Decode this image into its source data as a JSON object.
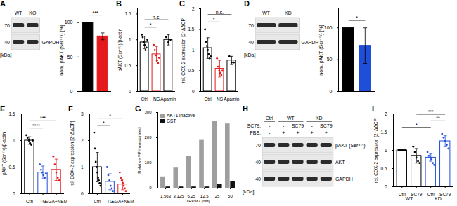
{
  "chart_data": [
    {
      "type": "blot",
      "panel": "A",
      "lanes": [
        "WT",
        "KO"
      ],
      "rows": [
        {
          "markers": [
            70
          ]
        },
        {
          "label": "GAPDH",
          "markers": [
            40
          ]
        }
      ],
      "unit": "[kDa]"
    },
    {
      "type": "bar",
      "categories": [
        null,
        null
      ],
      "values": [
        100,
        80
      ],
      "errors": [
        0,
        5
      ],
      "colors": [
        "#000000",
        "#e41a1c"
      ],
      "ylabel": "nom. pAKT (Ser⁴⁷³) [%]",
      "ylim": [
        0,
        120
      ],
      "yticks": [
        0,
        50,
        100
      ],
      "significance": [
        {
          "between": [
            0,
            1
          ],
          "label": "***"
        }
      ]
    },
    {
      "type": "bar",
      "panel": "B",
      "categories": [
        "Ctrl",
        "NS",
        "Apamin"
      ],
      "values": [
        0.95,
        0.72,
        1.0
      ],
      "errors": [
        0.12,
        0.15,
        0.1
      ],
      "colors": [
        "#000000",
        "#e41a1c",
        "#000000"
      ],
      "points": [
        [
          1.1,
          1.05,
          0.95,
          0.9,
          0.8,
          0.85,
          1.0
        ],
        [
          0.9,
          0.8,
          0.7,
          0.6,
          0.55,
          0.65
        ],
        [
          1.05,
          0.95,
          1.0
        ]
      ],
      "ylabel": "pAKT (Ser⁴⁷³)/β-actin",
      "ylim": [
        0,
        1.6
      ],
      "yticks": [
        0,
        0.5,
        1,
        1.5
      ],
      "significance": [
        {
          "between": [
            0,
            1
          ],
          "label": "*"
        },
        {
          "between": [
            0,
            2
          ],
          "label": "n.s."
        }
      ]
    },
    {
      "type": "bar",
      "panel": "C",
      "categories": [
        "Ctrl",
        "NS",
        "Apamin"
      ],
      "values": [
        1.05,
        0.55,
        0.75
      ],
      "errors": [
        0.25,
        0.2,
        0.1
      ],
      "colors": [
        "#000000",
        "#e41a1c",
        "#000000"
      ],
      "points": [
        [
          1.5,
          1.2,
          1.1,
          1.0,
          0.9,
          0.8,
          0.85
        ],
        [
          0.8,
          0.6,
          0.5,
          0.45,
          0.4,
          0.5
        ],
        [
          0.85,
          0.7,
          0.7
        ]
      ],
      "ylabel": "rel. COX-2 expression [2⁻ΔΔCP]",
      "ylim": [
        0,
        2
      ],
      "yticks": [
        0,
        0.5,
        1,
        1.5,
        2
      ],
      "significance": [
        {
          "between": [
            0,
            1
          ],
          "label": "*"
        },
        {
          "between": [
            0,
            2
          ],
          "label": "n.s."
        }
      ]
    },
    {
      "type": "blot",
      "panel": "D",
      "lanes": [
        "WT",
        "KD"
      ],
      "rows": [
        {
          "markers": [
            70
          ]
        },
        {
          "label": "GAPDH",
          "markers": [
            40
          ]
        }
      ],
      "unit": "[kDa]"
    },
    {
      "type": "bar",
      "categories": [
        null,
        null
      ],
      "values": [
        100,
        72
      ],
      "errors": [
        0,
        28
      ],
      "colors": [
        "#000000",
        "#1f4fd8"
      ],
      "ylabel": "nom. pAKT (Ser⁴⁷³) [%]",
      "ylim": [
        0,
        130
      ],
      "yticks": [
        0,
        50,
        100
      ],
      "significance": [
        {
          "between": [
            0,
            1
          ],
          "label": "*"
        }
      ]
    },
    {
      "type": "bar",
      "panel": "E",
      "categories": [
        "Ctrl",
        "TG",
        "EGA+NEM"
      ],
      "values": [
        1.0,
        0.4,
        0.45
      ],
      "errors": [
        0.07,
        0.12,
        0.2
      ],
      "colors": [
        "#000000",
        "#1f4fd8",
        "#e41a1c"
      ],
      "points": [
        [
          1.1,
          1.05,
          1.0,
          0.95,
          0.92,
          1.0
        ],
        [
          0.55,
          0.45,
          0.4,
          0.35,
          0.3,
          0.38
        ],
        [
          0.7,
          0.55,
          0.4,
          0.3,
          0.25
        ]
      ],
      "ylabel": "pAKT (Ser⁴⁷³)/β-actin",
      "ylim": [
        0,
        1.5
      ],
      "yticks": [
        0,
        0.5,
        1,
        1.5
      ],
      "significance": [
        {
          "between": [
            0,
            1
          ],
          "label": "****"
        },
        {
          "between": [
            0,
            2
          ],
          "label": "***"
        }
      ]
    },
    {
      "type": "bar",
      "panel": "F",
      "categories": [
        "Ctrl",
        "TG",
        "EGA+NEM"
      ],
      "values": [
        1.0,
        0.45,
        0.35
      ],
      "errors": [
        0.55,
        0.3,
        0.2
      ],
      "colors": [
        "#000000",
        "#1f4fd8",
        "#e41a1c"
      ],
      "points": [
        [
          2.3,
          1.7,
          1.2,
          1.0,
          0.8,
          0.6,
          0.5,
          0.4,
          0.3
        ],
        [
          1.0,
          0.7,
          0.5,
          0.3,
          0.2,
          0.1
        ],
        [
          0.8,
          0.6,
          0.5,
          0.4,
          0.3,
          0.2,
          0.1
        ]
      ],
      "ylabel": "rel. COX-2 expression [2⁻ΔΔCP]",
      "ylim": [
        0,
        3
      ],
      "yticks": [
        0,
        1,
        2,
        3
      ],
      "significance": [
        {
          "between": [
            0,
            1
          ],
          "label": "*"
        },
        {
          "between": [
            0,
            2
          ],
          "label": "*"
        }
      ]
    },
    {
      "type": "bar",
      "panel": "G",
      "categories": [
        "1.563",
        "3.125",
        "6.25",
        "12.5",
        "25",
        "50"
      ],
      "series": [
        {
          "name": "AKT1 inactive",
          "color": "#9e9e9e",
          "values": [
            45,
            80,
            125,
            190,
            265,
            255
          ]
        },
        {
          "name": "GST",
          "color": "#111111",
          "values": [
            5,
            5,
            5,
            5,
            15,
            25
          ]
        }
      ],
      "xlabel": "TRPM7 [nM]",
      "ylabel": "Relative ³³P incorporated",
      "ylim": [
        0,
        300
      ],
      "yticks": [
        0,
        100,
        200,
        300
      ],
      "legend": "top-left"
    },
    {
      "type": "blot",
      "panel": "H",
      "lane_groups": [
        "Ctrl",
        "WT",
        "WT",
        "KD",
        "KD"
      ],
      "treatments": [
        {
          "label": "SC79:",
          "values": [
            "-",
            "-",
            "SC79",
            "-",
            "SC79"
          ]
        },
        {
          "label": "FBS:",
          "values": [
            "-",
            "+",
            "+",
            "+",
            "+"
          ]
        }
      ],
      "rows": [
        {
          "label": "pAKT (Ser⁴⁷³)",
          "markers": [
            70
          ]
        },
        {
          "label": "AKT",
          "markers": [
            40
          ]
        },
        {
          "label": "GAPDH",
          "markers": [
            40
          ]
        }
      ],
      "unit": "[kDa]"
    },
    {
      "type": "bar",
      "panel": "I",
      "categories": [
        "Ctrl",
        "SC79",
        "Ctrl",
        "SC79"
      ],
      "groups": [
        "WT",
        "WT",
        "KD",
        "KD"
      ],
      "values": [
        1.0,
        0.85,
        0.8,
        1.25
      ],
      "errors": [
        0,
        0.2,
        0.1,
        0.15
      ],
      "colors": [
        "#000000",
        "#000000",
        "#1f4fd8",
        "#1f4fd8"
      ],
      "points": [
        [
          1,
          1,
          1,
          1,
          1,
          1
        ],
        [
          1.1,
          0.95,
          0.8,
          0.7,
          0.65
        ],
        [
          0.95,
          0.85,
          0.8,
          0.75,
          0.65,
          0.6
        ],
        [
          1.45,
          1.35,
          1.25,
          1.15,
          1.05
        ]
      ],
      "ylabel": "rel. COX-2 expression [2⁻ΔΔCP]",
      "ylim": [
        0,
        2
      ],
      "yticks": [
        0,
        0.5,
        1,
        1.5,
        2
      ],
      "significance": [
        {
          "between": [
            0,
            2
          ],
          "label": "*"
        },
        {
          "between": [
            2,
            3
          ],
          "label": "**"
        },
        {
          "between": [
            1,
            3
          ],
          "label": "***"
        }
      ]
    }
  ]
}
